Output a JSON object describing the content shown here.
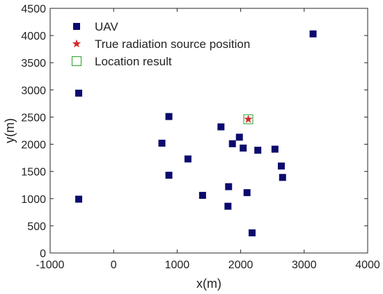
{
  "chart_data": {
    "type": "scatter",
    "title": "",
    "xlabel": "x(m)",
    "ylabel": "y(m)",
    "xlim": [
      -1000,
      4000
    ],
    "ylim": [
      0,
      4500
    ],
    "xticks": [
      -1000,
      0,
      1000,
      2000,
      3000,
      4000
    ],
    "yticks": [
      0,
      500,
      1000,
      1500,
      2000,
      2500,
      3000,
      3500,
      4000,
      4500
    ],
    "grid": false,
    "legend_position": "top-left",
    "series": [
      {
        "name": "UAV",
        "marker": "filled-square",
        "color": "#0b0b6e",
        "points": [
          {
            "x": -550,
            "y": 2940
          },
          {
            "x": -550,
            "y": 990
          },
          {
            "x": 870,
            "y": 2510
          },
          {
            "x": 760,
            "y": 2020
          },
          {
            "x": 870,
            "y": 1430
          },
          {
            "x": 1170,
            "y": 1730
          },
          {
            "x": 1400,
            "y": 1060
          },
          {
            "x": 1690,
            "y": 2320
          },
          {
            "x": 1810,
            "y": 1220
          },
          {
            "x": 1800,
            "y": 860
          },
          {
            "x": 1870,
            "y": 2010
          },
          {
            "x": 1980,
            "y": 2130
          },
          {
            "x": 2040,
            "y": 1930
          },
          {
            "x": 2100,
            "y": 1110
          },
          {
            "x": 2180,
            "y": 370
          },
          {
            "x": 2270,
            "y": 1890
          },
          {
            "x": 2540,
            "y": 1910
          },
          {
            "x": 2640,
            "y": 1600
          },
          {
            "x": 2660,
            "y": 1390
          },
          {
            "x": 3140,
            "y": 4030
          }
        ]
      },
      {
        "name": "True radiation source position",
        "marker": "star",
        "color": "#d62728",
        "points": [
          {
            "x": 2120,
            "y": 2460
          }
        ]
      },
      {
        "name": "Location result",
        "marker": "open-square",
        "color": "#2ca02c",
        "points": [
          {
            "x": 2120,
            "y": 2460
          }
        ]
      }
    ]
  }
}
